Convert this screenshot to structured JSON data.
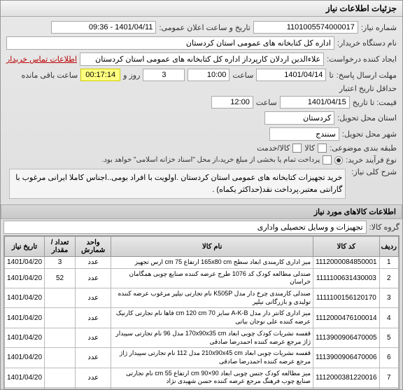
{
  "title": "جزئیات اطلاعات نیاز",
  "need_number_label": "شماره نیاز:",
  "need_number": "1101005574000017",
  "announce_label": "تاریخ و ساعت اعلان عمومی:",
  "announce": "1401/04/11 - 09:36",
  "buyer_label": "نام دستگاه خریدار:",
  "buyer": "اداره کل کتابخانه های عمومی استان کردستان",
  "creator_label": "ایجاد کننده درخواست:",
  "creator": "علاءالدین اردلان کارپرداز اداره کل کتابخانه های عمومی استان کردستان",
  "contact_link": "اطلاعات تماس خریدار",
  "deadline_label": "مهلت ارسال پاسخ:",
  "deadline_to": "تا",
  "deadline_date": "1401/04/14",
  "time_label": "ساعت",
  "deadline_time": "10:00",
  "and_label": "روز و",
  "days": "3",
  "timer": "00:17:14",
  "remaining": "ساعت باقی مانده",
  "validity_label": "حداقل تاریخ اعتبار",
  "validity_label2": "قیمت: تا تاریخ",
  "validity_date": "1401/04/15",
  "validity_time": "12:00",
  "province_label": "استان محل تحویل:",
  "province": "کردستان",
  "city_label": "شهر محل تحویل:",
  "city": "سنندج",
  "group_label": "طبقه بندی موضوعی:",
  "kala_service": "کالا/خدمت",
  "share_label": "کالا",
  "process_label": "نوع فرآیند خرید:",
  "process_radio": "پرداخت کل مبلغ خرید،از محل \"اسناد خزانه اسلامی\" خواهد بود.",
  "process_check": "پرداخت تمام یا بخشی از مبلغ خرید،از محل \"اسناد خزانه اسلامی\" خواهد بود.",
  "overview_label": "شرح کلی نیاز:",
  "overview": "خرید تجهیزات کتابخانه های عمومی استان کردستان .اولویت با افراد بومی..اجناس کاملا ایرانی مرغوب با گارانتی معتبر.پرداخت نقد(حداکثر یکماه) .",
  "items_header": "اطلاعات کالاهای مورد نیاز",
  "category_label": "گروه کالا:",
  "category": "تجهیزات و وسایل تحصیلی واداری",
  "cols": {
    "row": "ردیف",
    "code": "کد کالا",
    "name": "نام کالا",
    "unit": "واحد شمارش",
    "qty": "تعداد / مقدار",
    "date": "تاریخ نیاز"
  },
  "unit_name": "عدد",
  "rows": [
    {
      "n": "1",
      "code": "1112000084850001",
      "name": "میز اداری کارمندی ابعاد سطح 165x80 cm ارتفاع 75 cm ارس تجهیز",
      "qty": "3",
      "date": "1401/04/20"
    },
    {
      "n": "2",
      "code": "1111100631430003",
      "name": "صندلی مطالعه کودک کد 1076 طرح عرضه کننده صنایع چوبی همگامان خراسان",
      "qty": "52",
      "date": "1401/04/20"
    },
    {
      "n": "3",
      "code": "1111100156120170",
      "name": "صندلی کارمندی چرخ دار مدل K505P نام تجارتی نیلپر مرغوب عرضه کننده تولیدی و بازرگانی نیلپر",
      "qty": "",
      "date": "1401/04/20"
    },
    {
      "n": "4",
      "code": "1112000476100014",
      "name": "میز اداری کانتر دار مدل A-K-B سایز 70 cm 120 cm فاها نام تجارتی کارنیک عرضه کننده علی نوجان بیاتی",
      "qty": "",
      "date": "1401/04/20"
    },
    {
      "n": "5",
      "code": "1113900906470005",
      "name": "قفسه نشریات کودک چوبی ابعاد 170x90x35 cm مدل 96 نام تجارتی سپیدار ژاژ مرجع عرضه کننده احمدرضا صادقی",
      "qty": "",
      "date": "1401/04/20"
    },
    {
      "n": "6",
      "code": "1113900906470006",
      "name": "قفسه نشریات چوبی ابعاد 210x90x45 cm مدل 112 نام تجارتی سپیدار ژاژ مرجع عرضه کننده احمدرضا صادقی",
      "qty": "",
      "date": "1401/04/20"
    },
    {
      "n": "7",
      "code": "1112000381220016",
      "name": "میز مطالعه کودک جنس چوبی ابعاد 90×90 cm ارتفاع 55 cm نام تجارتی صنایع چوب فرهنگ مرجع عرضه کننده حسن شهیدی نژاد",
      "qty": "",
      "date": "1401/04/20"
    },
    {
      "n": "8",
      "code": "1113900381220010",
      "name": "قفسه کتاب کودک جنس چوب سایز 130×90×30 cm نام تجارتی صنایع چوب فرهنگ مرجع عرضه کننده حسن شهیدی",
      "qty": "10",
      "date": "1401/04/20"
    }
  ]
}
